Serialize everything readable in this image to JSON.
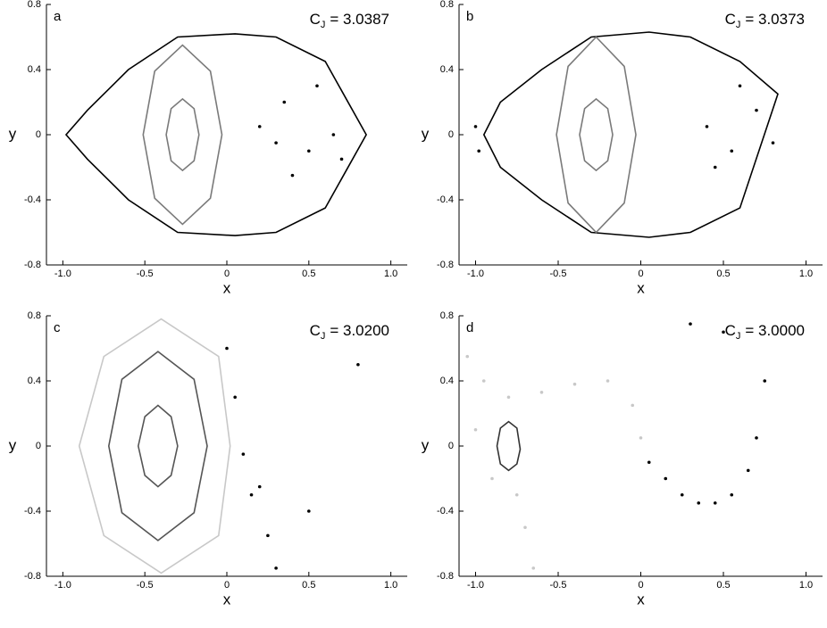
{
  "chart_data": [
    {
      "type": "scatter",
      "panel": "a",
      "annotation": {
        "symbol": "C",
        "subscript": "J",
        "text": "= 3.0387"
      },
      "x_label": "x",
      "y_label": "y",
      "xlim": [
        -1.1,
        1.1
      ],
      "ylim": [
        -0.8,
        0.8
      ],
      "xticks": [
        {
          "value": -1,
          "label": "-1.0"
        },
        -0.5,
        0,
        0.5,
        {
          "value": 1,
          "label": "1.0"
        }
      ],
      "yticks": [
        -0.8,
        -0.4,
        0,
        0.4,
        0.8
      ],
      "series": [
        {
          "color": "#000000",
          "style": "curve",
          "x": [
            0.85,
            0.6,
            0.3,
            0.05,
            -0.3,
            -0.6,
            -0.85,
            -0.98,
            -0.85,
            -0.6,
            -0.3,
            0.05,
            0.3,
            0.6
          ],
          "y": [
            0,
            0.45,
            0.6,
            0.62,
            0.6,
            0.4,
            0.15,
            0,
            -0.15,
            -0.4,
            -0.6,
            -0.62,
            -0.6,
            -0.45
          ]
        },
        {
          "color": "#7a7a7a",
          "style": "curve",
          "x": [
            -0.03,
            -0.1,
            -0.27,
            -0.44,
            -0.51,
            -0.44,
            -0.27,
            -0.1
          ],
          "y": [
            0,
            0.39,
            0.55,
            0.39,
            0,
            -0.39,
            -0.55,
            -0.39
          ]
        },
        {
          "color": "#7a7a7a",
          "style": "curve",
          "x": [
            -0.17,
            -0.2,
            -0.27,
            -0.34,
            -0.37,
            -0.34,
            -0.27,
            -0.2
          ],
          "y": [
            0,
            0.16,
            0.22,
            0.16,
            0,
            -0.16,
            -0.22,
            -0.16
          ]
        },
        {
          "color": "#000000",
          "style": "dots",
          "x": [
            0.2,
            0.35,
            0.5,
            0.65,
            0.4,
            0.55,
            0.3,
            0.7
          ],
          "y": [
            0.05,
            0.2,
            -0.1,
            0,
            -0.25,
            0.3,
            -0.05,
            -0.15
          ]
        }
      ]
    },
    {
      "type": "scatter",
      "panel": "b",
      "annotation": {
        "symbol": "C",
        "subscript": "J",
        "text": "= 3.0373"
      },
      "x_label": "x",
      "y_label": "y",
      "xlim": [
        -1.1,
        1.1
      ],
      "ylim": [
        -0.8,
        0.8
      ],
      "xticks": [
        {
          "value": -1,
          "label": "-1.0"
        },
        -0.5,
        0,
        0.5,
        {
          "value": 1,
          "label": "1.0"
        }
      ],
      "yticks": [
        -0.8,
        -0.4,
        0,
        0.4,
        0.8
      ],
      "series": [
        {
          "color": "#000000",
          "style": "curve",
          "x": [
            0.83,
            0.6,
            0.3,
            0.05,
            -0.3,
            -0.6,
            -0.85,
            -0.95,
            -0.85,
            -0.6,
            -0.3,
            0.05,
            0.3,
            0.6
          ],
          "y": [
            0.25,
            0.45,
            0.6,
            0.63,
            0.6,
            0.4,
            0.2,
            0,
            -0.2,
            -0.4,
            -0.6,
            -0.63,
            -0.6,
            -0.45
          ]
        },
        {
          "color": "#7a7a7a",
          "style": "curve",
          "x": [
            -0.03,
            -0.1,
            -0.27,
            -0.44,
            -0.51,
            -0.44,
            -0.27,
            -0.1
          ],
          "y": [
            0,
            0.42,
            0.6,
            0.42,
            0,
            -0.42,
            -0.6,
            -0.42
          ]
        },
        {
          "color": "#7a7a7a",
          "style": "curve",
          "x": [
            -0.17,
            -0.2,
            -0.27,
            -0.34,
            -0.37,
            -0.34,
            -0.27,
            -0.2
          ],
          "y": [
            0,
            0.16,
            0.22,
            0.16,
            0,
            -0.16,
            -0.22,
            -0.16
          ]
        },
        {
          "color": "#000000",
          "style": "dots",
          "x": [
            0.4,
            0.55,
            0.7,
            0.6,
            0.45,
            0.8,
            -1.0,
            -0.98
          ],
          "y": [
            0.05,
            -0.1,
            0.15,
            0.3,
            -0.2,
            -0.05,
            0.05,
            -0.1
          ]
        }
      ]
    },
    {
      "type": "scatter",
      "panel": "c",
      "annotation": {
        "symbol": "C",
        "subscript": "J",
        "text": "= 3.0200"
      },
      "x_label": "x",
      "y_label": "y",
      "xlim": [
        -1.1,
        1.1
      ],
      "ylim": [
        -0.8,
        0.8
      ],
      "xticks": [
        {
          "value": -1,
          "label": "-1.0"
        },
        -0.5,
        0,
        0.5,
        {
          "value": 1,
          "label": "1.0"
        }
      ],
      "yticks": [
        -0.8,
        -0.4,
        0,
        0.4,
        0.8
      ],
      "series": [
        {
          "color": "#c8c8c8",
          "style": "curve",
          "x": [
            0.02,
            -0.05,
            -0.4,
            -0.75,
            -0.9,
            -0.75,
            -0.4,
            -0.05
          ],
          "y": [
            0,
            0.55,
            0.78,
            0.55,
            0,
            -0.55,
            -0.78,
            -0.55
          ]
        },
        {
          "color": "#555555",
          "style": "curve",
          "x": [
            -0.12,
            -0.2,
            -0.42,
            -0.64,
            -0.72,
            -0.64,
            -0.42,
            -0.2
          ],
          "y": [
            0,
            0.41,
            0.58,
            0.41,
            0,
            -0.41,
            -0.58,
            -0.41
          ]
        },
        {
          "color": "#555555",
          "style": "curve",
          "x": [
            -0.3,
            -0.34,
            -0.42,
            -0.5,
            -0.54,
            -0.5,
            -0.42,
            -0.34
          ],
          "y": [
            0,
            0.18,
            0.25,
            0.18,
            0,
            -0.18,
            -0.25,
            -0.18
          ]
        },
        {
          "color": "#000000",
          "style": "dots",
          "x": [
            0,
            0.05,
            0.1,
            0.15,
            0.2,
            0.25,
            0.3,
            0.5,
            0.8
          ],
          "y": [
            0.6,
            0.3,
            -0.05,
            -0.3,
            -0.25,
            -0.55,
            -0.75,
            -0.4,
            0.5
          ]
        }
      ]
    },
    {
      "type": "scatter",
      "panel": "d",
      "annotation": {
        "symbol": "C",
        "subscript": "J",
        "text": "= 3.0000"
      },
      "x_label": "x",
      "y_label": "y",
      "xlim": [
        -1.1,
        1.1
      ],
      "ylim": [
        -0.8,
        0.8
      ],
      "xticks": [
        {
          "value": -1,
          "label": "-1.0"
        },
        -0.5,
        0,
        0.5,
        {
          "value": 1,
          "label": "1.0"
        }
      ],
      "yticks": [
        -0.8,
        -0.4,
        0,
        0.4,
        0.8
      ],
      "series": [
        {
          "color": "#c8c8c8",
          "style": "dots",
          "x": [
            -1.05,
            -0.95,
            -0.8,
            -0.6,
            -0.4,
            -0.2,
            -0.05,
            0,
            -0.75,
            -0.7,
            -0.65,
            -0.9,
            -1.0
          ],
          "y": [
            0.55,
            0.4,
            0.3,
            0.33,
            0.38,
            0.4,
            0.25,
            0.05,
            -0.3,
            -0.5,
            -0.75,
            -0.2,
            0.1
          ]
        },
        {
          "color": "#333333",
          "style": "curve",
          "x": [
            -0.73,
            -0.75,
            -0.8,
            -0.85,
            -0.87,
            -0.85,
            -0.8,
            -0.75
          ],
          "y": [
            -0.02,
            0.11,
            0.15,
            0.11,
            0,
            -0.11,
            -0.15,
            -0.11
          ]
        },
        {
          "color": "#000000",
          "style": "dots",
          "x": [
            0.05,
            0.15,
            0.25,
            0.35,
            0.45,
            0.55,
            0.65,
            0.7,
            0.75,
            0.5,
            0.3
          ],
          "y": [
            -0.1,
            -0.2,
            -0.3,
            -0.35,
            -0.35,
            -0.3,
            -0.15,
            0.05,
            0.4,
            0.7,
            0.75
          ]
        }
      ]
    }
  ]
}
